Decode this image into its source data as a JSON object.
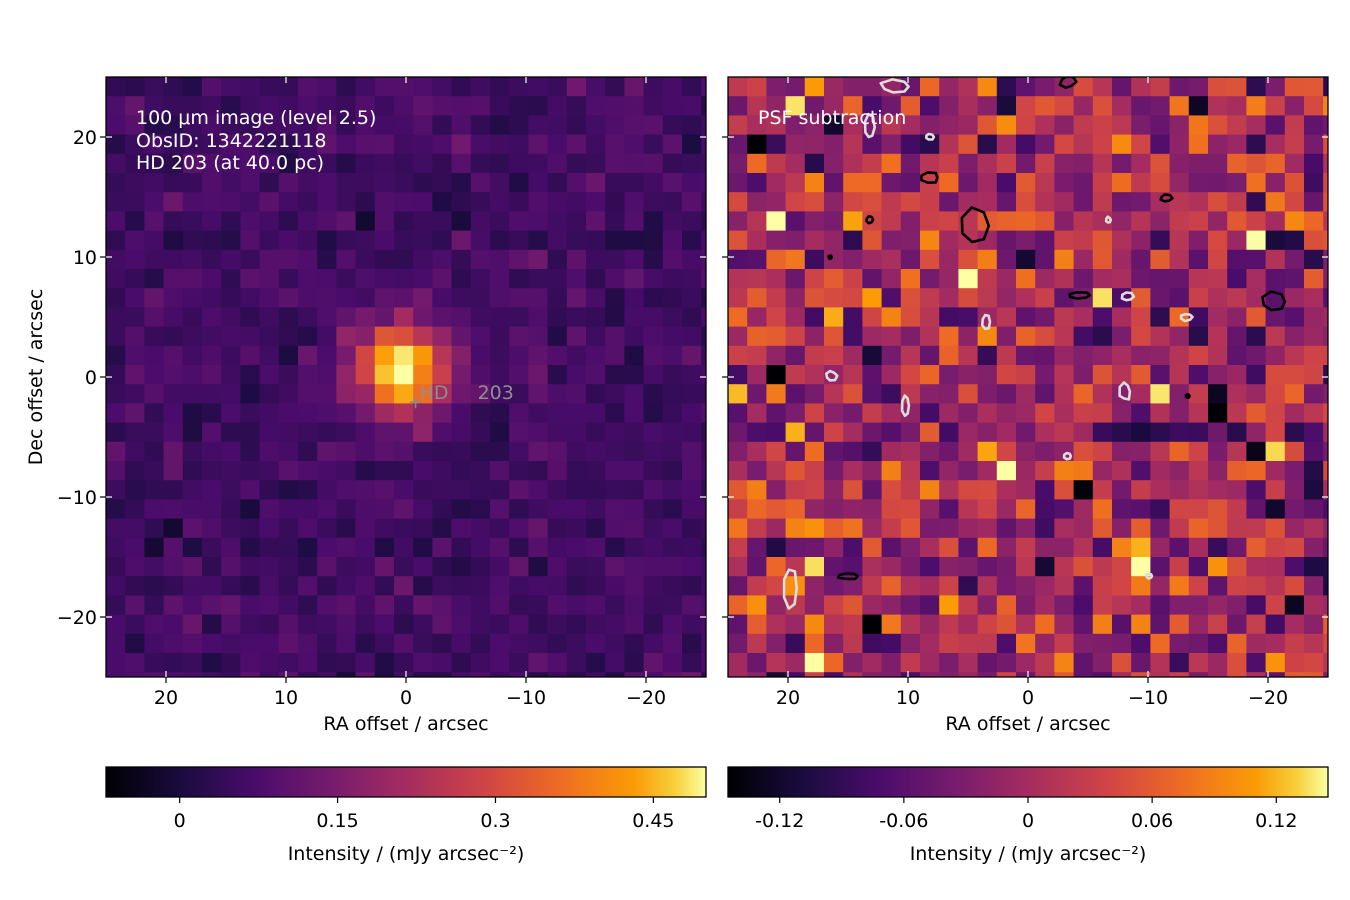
{
  "chart_data": [
    {
      "type": "heatmap",
      "colormap": "inferno",
      "xlabel": "RA offset / arcsec",
      "ylabel": "Dec offset / arcsec",
      "xlim": [
        25,
        -25
      ],
      "ylim": [
        -25,
        25
      ],
      "x_ticks": [
        {
          "value": 20,
          "label": "20"
        },
        {
          "value": 10,
          "label": "10"
        },
        {
          "value": 0,
          "label": "0"
        },
        {
          "value": -10,
          "label": "−10"
        },
        {
          "value": -20,
          "label": "−20"
        }
      ],
      "y_ticks": [
        {
          "value": 20,
          "label": "20"
        },
        {
          "value": 10,
          "label": "10"
        },
        {
          "value": 0,
          "label": "0"
        },
        {
          "value": -10,
          "label": "−10"
        },
        {
          "value": -20,
          "label": "−20"
        }
      ],
      "annotation_lines": [
        "100 μm image (level 2.5)",
        "ObsID: 1342221118",
        "HD 203 (at 40.0 pc)"
      ],
      "star_marker": {
        "x": -0.8,
        "y": -2.1,
        "label_left": "HD",
        "label_right": "203"
      },
      "pixel_size_arcsec": 1.6,
      "background_level": 0.06,
      "source": {
        "peak": 0.48,
        "x": 0.4,
        "y": 0.6,
        "sigma": 2.6
      },
      "colorbar": {
        "label": "Intensity / (mJy arcsec⁻²)",
        "vmin": -0.07,
        "vmax": 0.5,
        "ticks": [
          {
            "value": 0,
            "label": "0"
          },
          {
            "value": 0.15,
            "label": "0.15"
          },
          {
            "value": 0.3,
            "label": "0.3"
          },
          {
            "value": 0.45,
            "label": "0.45"
          }
        ]
      }
    },
    {
      "type": "heatmap",
      "colormap": "inferno",
      "xlabel": "RA offset / arcsec",
      "ylabel": "",
      "xlim": [
        25,
        -25
      ],
      "ylim": [
        -25,
        25
      ],
      "x_ticks": [
        {
          "value": 20,
          "label": "20"
        },
        {
          "value": 10,
          "label": "10"
        },
        {
          "value": 0,
          "label": "0"
        },
        {
          "value": -10,
          "label": "−10"
        },
        {
          "value": -20,
          "label": "−20"
        }
      ],
      "annotation_lines": [
        "PSF subtraction"
      ],
      "pixel_size_arcsec": 1.6,
      "residual_std": 0.05,
      "contours": {
        "levels": [
          -0.12,
          0.12
        ],
        "colors": [
          "#dddddd",
          "#000000"
        ],
        "negative_features": [
          {
            "x": 19.8,
            "y": -17.6,
            "w": 1.2,
            "h": 3.6
          },
          {
            "x": 10.2,
            "y": -2.4,
            "w": 0.6,
            "h": 1.8
          },
          {
            "x": 13.2,
            "y": 20.8,
            "w": 0.8,
            "h": 2.0
          },
          {
            "x": 16.4,
            "y": 0.1,
            "w": 0.9,
            "h": 0.8
          },
          {
            "x": -8.1,
            "y": -1.2,
            "w": 0.9,
            "h": 1.5
          },
          {
            "x": -8.3,
            "y": 6.7,
            "w": 1.0,
            "h": 0.7
          },
          {
            "x": -13.2,
            "y": 5.0,
            "w": 1.0,
            "h": 0.6
          },
          {
            "x": 3.5,
            "y": 4.6,
            "w": 0.7,
            "h": 1.3
          },
          {
            "x": 11.0,
            "y": 24.2,
            "w": 2.6,
            "h": 1.2
          },
          {
            "x": -3.3,
            "y": -6.6,
            "w": 0.6,
            "h": 0.5
          },
          {
            "x": -10.1,
            "y": -16.6,
            "w": 0.5,
            "h": 0.4
          },
          {
            "x": 8.2,
            "y": 20.0,
            "w": 0.7,
            "h": 0.5
          },
          {
            "x": -6.7,
            "y": 13.1,
            "w": 0.4,
            "h": 0.5
          }
        ],
        "positive_features": [
          {
            "x": 4.4,
            "y": 12.6,
            "w": 2.6,
            "h": 3.2
          },
          {
            "x": 8.2,
            "y": 16.6,
            "w": 1.5,
            "h": 0.9
          },
          {
            "x": -4.3,
            "y": 6.8,
            "w": 1.8,
            "h": 0.5
          },
          {
            "x": -20.5,
            "y": 6.3,
            "w": 2.0,
            "h": 1.5
          },
          {
            "x": 15.0,
            "y": -16.6,
            "w": 1.7,
            "h": 0.5
          },
          {
            "x": -11.5,
            "y": 14.9,
            "w": 1.0,
            "h": 0.6
          },
          {
            "x": 13.2,
            "y": 13.1,
            "w": 0.6,
            "h": 0.6
          },
          {
            "x": -3.3,
            "y": 24.6,
            "w": 1.3,
            "h": 1.0
          },
          {
            "x": -13.3,
            "y": -1.6,
            "w": 0.3,
            "h": 0.3
          },
          {
            "x": 16.5,
            "y": 10.0,
            "w": 0.3,
            "h": 0.3
          }
        ]
      },
      "colorbar": {
        "label": "Intensity / (mJy arcsec⁻²)",
        "vmin": -0.145,
        "vmax": 0.145,
        "ticks": [
          {
            "value": -0.12,
            "label": "-0.12"
          },
          {
            "value": -0.06,
            "label": "-0.06"
          },
          {
            "value": 0,
            "label": "0"
          },
          {
            "value": 0.06,
            "label": "0.06"
          },
          {
            "value": 0.12,
            "label": "0.12"
          }
        ]
      }
    }
  ]
}
